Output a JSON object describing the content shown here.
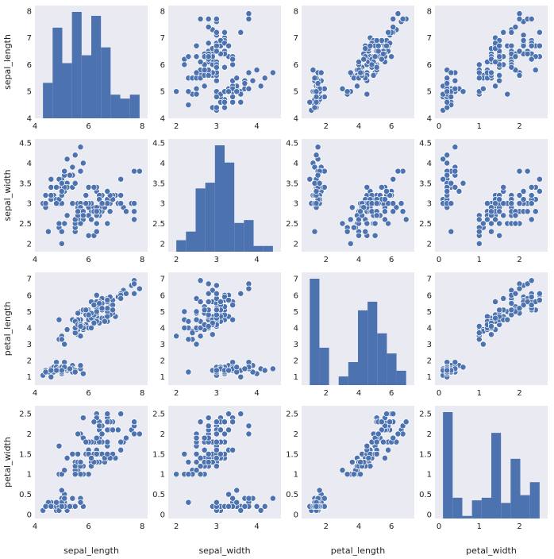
{
  "chart_data": {
    "type": "scatter",
    "kind": "pairplot",
    "variables": [
      "sepal_length",
      "sepal_width",
      "petal_length",
      "petal_width"
    ],
    "axis_labels": [
      "sepal_length",
      "sepal_width",
      "petal_length",
      "petal_width"
    ],
    "ranges": {
      "sepal_length": [
        4.0,
        8.2
      ],
      "sepal_width": [
        1.8,
        4.6
      ],
      "petal_length": [
        0.5,
        7.4
      ],
      "petal_width": [
        -0.1,
        2.7
      ]
    },
    "ticks": {
      "sepal_length": [
        4,
        5,
        6,
        7,
        8
      ],
      "sepal_width": [
        2.0,
        2.5,
        3.0,
        3.5,
        4.0,
        4.5
      ],
      "petal_length": [
        1,
        2,
        3,
        4,
        5,
        6,
        7
      ],
      "petal_width": [
        0.0,
        0.5,
        1.0,
        1.5,
        2.0,
        2.5
      ]
    },
    "x_ticks": {
      "sepal_length": [
        4,
        6,
        8
      ],
      "sepal_width": [
        2,
        3,
        4
      ],
      "petal_length": [
        2,
        4,
        6
      ],
      "petal_width": [
        0,
        1,
        2
      ]
    },
    "diagonal": "histogram",
    "histograms": {
      "sepal_length": {
        "edges": [
          4.3,
          4.66,
          5.02,
          5.38,
          5.74,
          6.1,
          6.46,
          6.82,
          7.18,
          7.54,
          7.9
        ],
        "counts": [
          9,
          23,
          14,
          27,
          16,
          26,
          18,
          6,
          5,
          6
        ]
      },
      "sepal_width": {
        "edges": [
          2.0,
          2.24,
          2.48,
          2.72,
          2.96,
          3.2,
          3.44,
          3.68,
          3.92,
          4.16,
          4.4
        ],
        "counts": [
          4,
          7,
          22,
          24,
          37,
          31,
          10,
          11,
          2,
          2
        ]
      },
      "petal_length": {
        "edges": [
          1.0,
          1.59,
          2.18,
          2.77,
          3.36,
          3.95,
          4.54,
          5.13,
          5.72,
          6.31,
          6.9
        ],
        "counts": [
          37,
          13,
          0,
          3,
          8,
          26,
          29,
          18,
          11,
          5
        ]
      },
      "petal_width": {
        "edges": [
          0.1,
          0.34,
          0.58,
          0.82,
          1.06,
          1.3,
          1.54,
          1.78,
          2.02,
          2.26,
          2.5
        ],
        "counts": [
          41,
          8,
          1,
          7,
          8,
          33,
          6,
          23,
          9,
          14
        ]
      }
    },
    "rows": [
      [
        5.1,
        3.5,
        1.4,
        0.2
      ],
      [
        4.9,
        3.0,
        1.4,
        0.2
      ],
      [
        4.7,
        3.2,
        1.3,
        0.2
      ],
      [
        4.6,
        3.1,
        1.5,
        0.2
      ],
      [
        5.0,
        3.6,
        1.4,
        0.2
      ],
      [
        5.4,
        3.9,
        1.7,
        0.4
      ],
      [
        4.6,
        3.4,
        1.4,
        0.3
      ],
      [
        5.0,
        3.4,
        1.5,
        0.2
      ],
      [
        4.4,
        2.9,
        1.4,
        0.2
      ],
      [
        4.9,
        3.1,
        1.5,
        0.1
      ],
      [
        5.4,
        3.7,
        1.5,
        0.2
      ],
      [
        4.8,
        3.4,
        1.6,
        0.2
      ],
      [
        4.8,
        3.0,
        1.4,
        0.1
      ],
      [
        4.3,
        3.0,
        1.1,
        0.1
      ],
      [
        5.8,
        4.0,
        1.2,
        0.2
      ],
      [
        5.7,
        4.4,
        1.5,
        0.4
      ],
      [
        5.4,
        3.9,
        1.3,
        0.4
      ],
      [
        5.1,
        3.5,
        1.4,
        0.3
      ],
      [
        5.7,
        3.8,
        1.7,
        0.3
      ],
      [
        5.1,
        3.8,
        1.5,
        0.3
      ],
      [
        5.4,
        3.4,
        1.7,
        0.2
      ],
      [
        5.1,
        3.7,
        1.5,
        0.4
      ],
      [
        4.6,
        3.6,
        1.0,
        0.2
      ],
      [
        5.1,
        3.3,
        1.7,
        0.5
      ],
      [
        4.8,
        3.4,
        1.9,
        0.2
      ],
      [
        5.0,
        3.0,
        1.6,
        0.2
      ],
      [
        5.0,
        3.4,
        1.6,
        0.4
      ],
      [
        5.2,
        3.5,
        1.5,
        0.2
      ],
      [
        5.2,
        3.4,
        1.4,
        0.2
      ],
      [
        4.7,
        3.2,
        1.6,
        0.2
      ],
      [
        4.8,
        3.1,
        1.6,
        0.2
      ],
      [
        5.4,
        3.4,
        1.5,
        0.4
      ],
      [
        5.2,
        4.1,
        1.5,
        0.1
      ],
      [
        5.5,
        4.2,
        1.4,
        0.2
      ],
      [
        4.9,
        3.1,
        1.5,
        0.2
      ],
      [
        5.0,
        3.2,
        1.2,
        0.2
      ],
      [
        5.5,
        3.5,
        1.3,
        0.2
      ],
      [
        4.9,
        3.6,
        1.4,
        0.1
      ],
      [
        4.4,
        3.0,
        1.3,
        0.2
      ],
      [
        5.1,
        3.4,
        1.5,
        0.2
      ],
      [
        5.0,
        3.5,
        1.3,
        0.3
      ],
      [
        4.5,
        2.3,
        1.3,
        0.3
      ],
      [
        4.4,
        3.2,
        1.3,
        0.2
      ],
      [
        5.0,
        3.5,
        1.6,
        0.6
      ],
      [
        5.1,
        3.8,
        1.9,
        0.4
      ],
      [
        4.8,
        3.0,
        1.4,
        0.3
      ],
      [
        5.1,
        3.8,
        1.6,
        0.2
      ],
      [
        4.6,
        3.2,
        1.4,
        0.2
      ],
      [
        5.3,
        3.7,
        1.5,
        0.2
      ],
      [
        5.0,
        3.3,
        1.4,
        0.2
      ],
      [
        7.0,
        3.2,
        4.7,
        1.4
      ],
      [
        6.4,
        3.2,
        4.5,
        1.5
      ],
      [
        6.9,
        3.1,
        4.9,
        1.5
      ],
      [
        5.5,
        2.3,
        4.0,
        1.3
      ],
      [
        6.5,
        2.8,
        4.6,
        1.5
      ],
      [
        5.7,
        2.8,
        4.5,
        1.3
      ],
      [
        6.3,
        3.3,
        4.7,
        1.6
      ],
      [
        4.9,
        2.4,
        3.3,
        1.0
      ],
      [
        6.6,
        2.9,
        4.6,
        1.3
      ],
      [
        5.2,
        2.7,
        3.9,
        1.4
      ],
      [
        5.0,
        2.0,
        3.5,
        1.0
      ],
      [
        5.9,
        3.0,
        4.2,
        1.5
      ],
      [
        6.0,
        2.2,
        4.0,
        1.0
      ],
      [
        6.1,
        2.9,
        4.7,
        1.4
      ],
      [
        5.6,
        2.9,
        3.6,
        1.3
      ],
      [
        6.7,
        3.1,
        4.4,
        1.4
      ],
      [
        5.6,
        3.0,
        4.5,
        1.5
      ],
      [
        5.8,
        2.7,
        4.1,
        1.0
      ],
      [
        6.2,
        2.2,
        4.5,
        1.5
      ],
      [
        5.6,
        2.5,
        3.9,
        1.1
      ],
      [
        5.9,
        3.2,
        4.8,
        1.8
      ],
      [
        6.1,
        2.8,
        4.0,
        1.3
      ],
      [
        6.3,
        2.5,
        4.9,
        1.5
      ],
      [
        6.1,
        2.8,
        4.7,
        1.2
      ],
      [
        6.4,
        2.9,
        4.3,
        1.3
      ],
      [
        6.6,
        3.0,
        4.4,
        1.4
      ],
      [
        6.8,
        2.8,
        4.8,
        1.4
      ],
      [
        6.7,
        3.0,
        5.0,
        1.7
      ],
      [
        6.0,
        2.9,
        4.5,
        1.5
      ],
      [
        5.7,
        2.6,
        3.5,
        1.0
      ],
      [
        5.5,
        2.4,
        3.8,
        1.1
      ],
      [
        5.5,
        2.4,
        3.7,
        1.0
      ],
      [
        5.8,
        2.7,
        3.9,
        1.2
      ],
      [
        6.0,
        2.7,
        5.1,
        1.6
      ],
      [
        5.4,
        3.0,
        4.5,
        1.5
      ],
      [
        6.0,
        3.4,
        4.5,
        1.6
      ],
      [
        6.7,
        3.1,
        4.7,
        1.5
      ],
      [
        6.3,
        2.3,
        4.4,
        1.3
      ],
      [
        5.6,
        3.0,
        4.1,
        1.3
      ],
      [
        5.5,
        2.5,
        4.0,
        1.3
      ],
      [
        5.5,
        2.6,
        4.4,
        1.2
      ],
      [
        6.1,
        3.0,
        4.6,
        1.4
      ],
      [
        5.8,
        2.6,
        4.0,
        1.2
      ],
      [
        5.0,
        2.3,
        3.3,
        1.0
      ],
      [
        5.6,
        2.7,
        4.2,
        1.3
      ],
      [
        5.7,
        3.0,
        4.2,
        1.2
      ],
      [
        5.7,
        2.9,
        4.2,
        1.3
      ],
      [
        6.2,
        2.9,
        4.3,
        1.3
      ],
      [
        5.1,
        2.5,
        3.0,
        1.1
      ],
      [
        5.7,
        2.8,
        4.1,
        1.3
      ],
      [
        6.3,
        3.3,
        6.0,
        2.5
      ],
      [
        5.8,
        2.7,
        5.1,
        1.9
      ],
      [
        7.1,
        3.0,
        5.9,
        2.1
      ],
      [
        6.3,
        2.9,
        5.6,
        1.8
      ],
      [
        6.5,
        3.0,
        5.8,
        2.2
      ],
      [
        7.6,
        3.0,
        6.6,
        2.1
      ],
      [
        4.9,
        2.5,
        4.5,
        1.7
      ],
      [
        7.3,
        2.9,
        6.3,
        1.8
      ],
      [
        6.7,
        2.5,
        5.8,
        1.8
      ],
      [
        7.2,
        3.6,
        6.1,
        2.5
      ],
      [
        6.5,
        3.2,
        5.1,
        2.0
      ],
      [
        6.4,
        2.7,
        5.3,
        1.9
      ],
      [
        6.8,
        3.0,
        5.5,
        2.1
      ],
      [
        5.7,
        2.5,
        5.0,
        2.0
      ],
      [
        5.8,
        2.8,
        5.1,
        2.4
      ],
      [
        6.4,
        3.2,
        5.3,
        2.3
      ],
      [
        6.5,
        3.0,
        5.5,
        1.8
      ],
      [
        7.7,
        3.8,
        6.7,
        2.2
      ],
      [
        7.7,
        2.6,
        6.9,
        2.3
      ],
      [
        6.0,
        2.2,
        5.0,
        1.5
      ],
      [
        6.9,
        3.2,
        5.7,
        2.3
      ],
      [
        5.6,
        2.8,
        4.9,
        2.0
      ],
      [
        7.7,
        2.8,
        6.7,
        2.0
      ],
      [
        6.3,
        2.7,
        4.9,
        1.8
      ],
      [
        6.7,
        3.3,
        5.7,
        2.1
      ],
      [
        7.2,
        3.2,
        6.0,
        1.8
      ],
      [
        6.2,
        2.8,
        4.8,
        1.8
      ],
      [
        6.1,
        3.0,
        4.9,
        1.8
      ],
      [
        6.4,
        2.8,
        5.6,
        2.1
      ],
      [
        7.2,
        3.0,
        5.8,
        1.6
      ],
      [
        7.4,
        2.8,
        6.1,
        1.9
      ],
      [
        7.9,
        3.8,
        6.4,
        2.0
      ],
      [
        6.4,
        2.8,
        5.6,
        2.2
      ],
      [
        6.3,
        2.8,
        5.1,
        1.5
      ],
      [
        6.1,
        2.6,
        5.6,
        1.4
      ],
      [
        7.7,
        3.0,
        6.1,
        2.3
      ],
      [
        6.3,
        3.4,
        5.6,
        2.4
      ],
      [
        6.4,
        3.1,
        5.5,
        1.8
      ],
      [
        6.0,
        3.0,
        4.8,
        1.8
      ],
      [
        6.9,
        3.1,
        5.4,
        2.1
      ],
      [
        6.7,
        3.1,
        5.6,
        2.4
      ],
      [
        6.9,
        3.1,
        5.1,
        2.3
      ],
      [
        5.8,
        2.7,
        5.1,
        1.9
      ],
      [
        6.8,
        3.2,
        5.9,
        2.3
      ],
      [
        6.7,
        3.3,
        5.7,
        2.5
      ],
      [
        6.7,
        3.0,
        5.2,
        2.3
      ],
      [
        6.3,
        2.5,
        5.0,
        1.9
      ],
      [
        6.5,
        3.0,
        5.2,
        2.0
      ],
      [
        6.2,
        3.4,
        5.4,
        2.3
      ],
      [
        5.9,
        3.0,
        5.1,
        1.8
      ]
    ],
    "grid": false,
    "legend": "none",
    "colors": {
      "panel": "#EAEAF2",
      "marker": "#4C72B0",
      "marker_edge": "#FFFFFF",
      "bar": "#4C72B0"
    }
  }
}
